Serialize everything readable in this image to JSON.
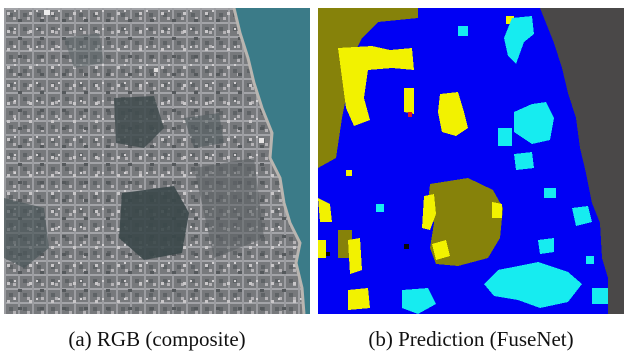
{
  "captions": {
    "left": "(a) RGB (composite)",
    "right": "(b) Prediction (FuseNet)"
  },
  "colors": {
    "satellite_urban": "#7e7f82",
    "satellite_dark_urban": "#5a5f62",
    "satellite_park": "#3e4c4e",
    "satellite_water": "#3c7e8a",
    "satellite_bright": "#c8c6c8",
    "class_blue": "#0000f4",
    "class_olive": "#86820a",
    "class_yellow": "#f2f200",
    "class_cyan": "#16ecf0",
    "class_dark_gray": "#4a4848",
    "class_red": "#e0182a",
    "class_black": "#0a0a0a"
  }
}
